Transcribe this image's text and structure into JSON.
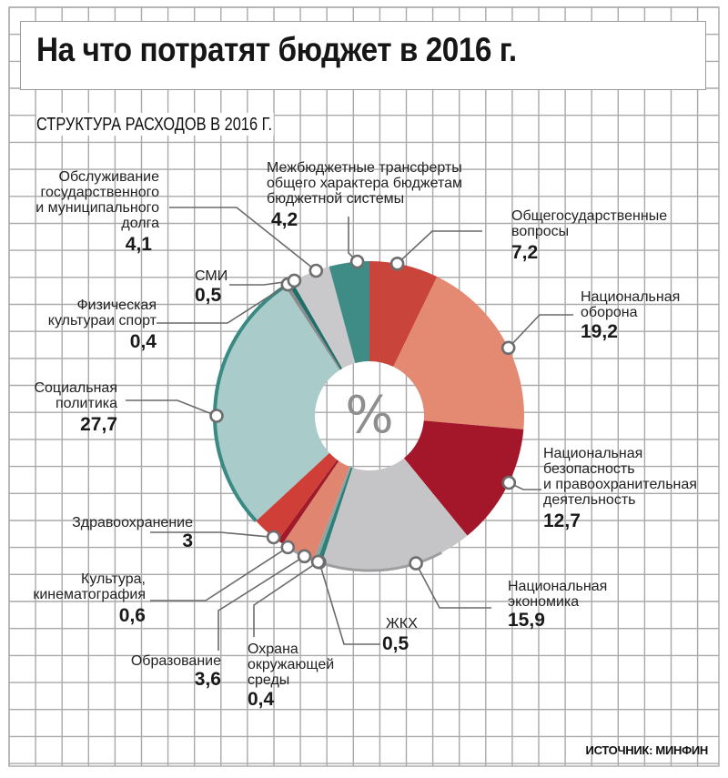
{
  "header": {
    "title": "На что потратят бюджет в 2016 г.",
    "subtitle": "СТРУКТУРА РАСХОДОВ В 2016 Г."
  },
  "footer": {
    "source": "ИСТОЧНИК: МИНФИН"
  },
  "chart_data": {
    "type": "pie",
    "variant": "donut",
    "title": "СТРУКТУРА РАСХОДОВ В 2016 Г.",
    "center_label": "%",
    "unit": "%",
    "start": "12 o'clock, clockwise",
    "slices": [
      {
        "label": "Общегосударственные вопросы",
        "value": 7.2,
        "display": "7,2",
        "color": "#c9453b"
      },
      {
        "label": "Национальная оборона",
        "value": 19.2,
        "display": "19,2",
        "color": "#e48a72"
      },
      {
        "label": "Национальная безопасность и правоохранительная деятельность",
        "value": 12.7,
        "display": "12,7",
        "color": "#a4162a"
      },
      {
        "label": "Национальная экономика",
        "value": 15.9,
        "display": "15,9",
        "color": "#c5c5c7"
      },
      {
        "label": "ЖКХ",
        "value": 0.5,
        "display": "0,5",
        "color": "#2f7f79"
      },
      {
        "label": "Охрана окружающей среды",
        "value": 0.4,
        "display": "0,4",
        "color": "#8aa5a6"
      },
      {
        "label": "Образование",
        "value": 3.6,
        "display": "3,6",
        "color": "#e08670"
      },
      {
        "label": "Культура, кинематография",
        "value": 0.6,
        "display": "0,6",
        "color": "#a01a2a"
      },
      {
        "label": "Здравоохранение",
        "value": 3.0,
        "display": "3",
        "color": "#cf3f38"
      },
      {
        "label": "Социальная политика",
        "value": 27.7,
        "display": "27,7",
        "color": "#a9cbca"
      },
      {
        "label": "Физическая культура и спорт",
        "value": 0.4,
        "display": "0,4",
        "color": "#8c8c90"
      },
      {
        "label": "СМИ",
        "value": 0.5,
        "display": "0,5",
        "color": "#1f6f68"
      },
      {
        "label": "Обслуживание государственного и муниципального долга",
        "value": 4.1,
        "display": "4,1",
        "color": "#c9c9cc"
      },
      {
        "label": "Межбюджетные трансферты общего характера бюджетам бюджетной системы",
        "value": 4.2,
        "display": "4,2",
        "color": "#3f8b85"
      }
    ]
  },
  "labels": {
    "obshchegos": {
      "lines": [
        "Общегосударственные",
        "вопросы"
      ],
      "value": "7,2"
    },
    "oborona": {
      "lines": [
        "Национальная",
        "оборона"
      ],
      "value": "19,2"
    },
    "bezopasnost": {
      "lines": [
        "Национальная",
        "безопасность",
        "и правоохранительная",
        "деятельность"
      ],
      "value": "12,7"
    },
    "ekonomika": {
      "lines": [
        "Национальная",
        "экономика"
      ],
      "value": "15,9"
    },
    "zhkh": {
      "lines": [
        "ЖКХ"
      ],
      "value": "0,5"
    },
    "okhrana": {
      "lines": [
        "Охрана",
        "окружающей",
        "среды"
      ],
      "value": "0,4"
    },
    "obrazovanie": {
      "lines": [
        "Образование"
      ],
      "value": "3,6"
    },
    "kultura": {
      "lines": [
        "Культура,",
        "кинематография"
      ],
      "value": "0,6"
    },
    "zdravo": {
      "lines": [
        "Здравоохранение"
      ],
      "value": "3"
    },
    "social": {
      "lines": [
        "Социальная",
        "политика"
      ],
      "value": "27,7"
    },
    "sport": {
      "lines": [
        "Физическая",
        "культураи спорт"
      ],
      "value": "0,4"
    },
    "smi": {
      "lines": [
        "СМИ"
      ],
      "value": "0,5"
    },
    "dolg": {
      "lines": [
        "Обслуживание",
        "государственного",
        "и муниципального",
        "долга"
      ],
      "value": "4,1"
    },
    "mezhbudzhet": {
      "lines": [
        "Межбюджетные трансферты",
        "общего характера бюджетам",
        "бюджетной системы"
      ],
      "value": "4,2"
    }
  }
}
